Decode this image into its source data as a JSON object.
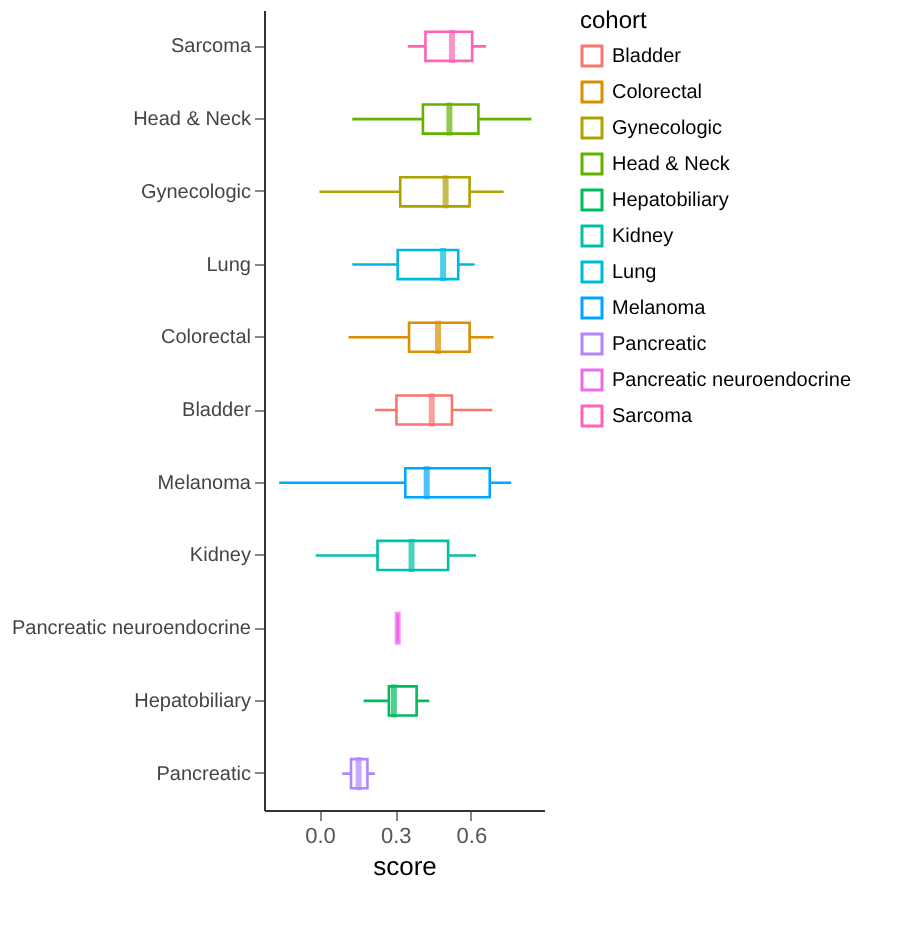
{
  "chart_data": {
    "type": "box",
    "orientation": "horizontal",
    "xlabel": "score",
    "legend_title": "cohort",
    "legend": "right",
    "grid": false,
    "categories": [
      "Sarcoma",
      "Head & Neck",
      "Gynecologic",
      "Lung",
      "Colorectal",
      "Bladder",
      "Melanoma",
      "Kidney",
      "Pancreatic neuroendocrine",
      "Hepatobiliary",
      "Pancreatic"
    ],
    "xlim": [
      -0.22,
      0.89
    ],
    "xticks": [
      {
        "value": 0,
        "label": "0.0"
      },
      {
        "value": 0.3,
        "label": "0.3"
      },
      {
        "value": 0.6,
        "label": "0.6"
      }
    ],
    "series": [
      {
        "name": "Bladder",
        "color": "#f8766d",
        "boxes": [
          null,
          null,
          null,
          null,
          null,
          {
            "low": 0.22,
            "q1": 0.305,
            "median": 0.445,
            "q3": 0.525,
            "high": 0.685
          },
          null,
          null,
          null,
          null,
          null
        ]
      },
      {
        "name": "Colorectal",
        "color": "#db8e00",
        "boxes": [
          null,
          null,
          null,
          null,
          {
            "low": 0.115,
            "q1": 0.355,
            "median": 0.47,
            "q3": 0.595,
            "high": 0.69
          },
          null,
          null,
          null,
          null,
          null,
          null
        ]
      },
      {
        "name": "Gynecologic",
        "color": "#aea200",
        "boxes": [
          null,
          null,
          {
            "low": 0.0,
            "q1": 0.32,
            "median": 0.5,
            "q3": 0.595,
            "high": 0.73
          },
          null,
          null,
          null,
          null,
          null,
          null,
          null,
          null
        ]
      },
      {
        "name": "Head & Neck",
        "color": "#64b200",
        "boxes": [
          null,
          {
            "low": 0.13,
            "q1": 0.41,
            "median": 0.515,
            "q3": 0.63,
            "high": 0.84
          },
          null,
          null,
          null,
          null,
          null,
          null,
          null,
          null,
          null
        ]
      },
      {
        "name": "Hepatobiliary",
        "color": "#00bd5c",
        "boxes": [
          null,
          null,
          null,
          null,
          null,
          null,
          null,
          null,
          null,
          {
            "low": 0.175,
            "q1": 0.275,
            "median": 0.295,
            "q3": 0.385,
            "high": 0.435
          },
          null
        ]
      },
      {
        "name": "Kidney",
        "color": "#00c1a7",
        "boxes": [
          null,
          null,
          null,
          null,
          null,
          null,
          null,
          {
            "low": -0.015,
            "q1": 0.23,
            "median": 0.365,
            "q3": 0.51,
            "high": 0.62
          },
          null,
          null,
          null
        ]
      },
      {
        "name": "Lung",
        "color": "#00bade",
        "boxes": [
          null,
          null,
          null,
          {
            "low": 0.13,
            "q1": 0.31,
            "median": 0.49,
            "q3": 0.55,
            "high": 0.615
          },
          null,
          null,
          null,
          null,
          null,
          null,
          null
        ]
      },
      {
        "name": "Melanoma",
        "color": "#00a6ff",
        "boxes": [
          null,
          null,
          null,
          null,
          null,
          null,
          {
            "low": -0.16,
            "q1": 0.34,
            "median": 0.425,
            "q3": 0.675,
            "high": 0.76
          },
          null,
          null,
          null,
          null
        ]
      },
      {
        "name": "Pancreatic",
        "color": "#b385ff",
        "boxes": [
          null,
          null,
          null,
          null,
          null,
          null,
          null,
          null,
          null,
          null,
          {
            "low": 0.09,
            "q1": 0.125,
            "median": 0.155,
            "q3": 0.19,
            "high": 0.22
          }
        ]
      },
      {
        "name": "Pancreatic neuroendocrine",
        "color": "#ef67eb",
        "boxes": [
          null,
          null,
          null,
          null,
          null,
          null,
          null,
          null,
          {
            "low": 0.31,
            "q1": 0.31,
            "median": 0.31,
            "q3": 0.31,
            "high": 0.31
          },
          null,
          null
        ]
      },
      {
        "name": "Sarcoma",
        "color": "#ff63b6",
        "boxes": [
          {
            "low": 0.35,
            "q1": 0.42,
            "median": 0.525,
            "q3": 0.605,
            "high": 0.66
          },
          null,
          null,
          null,
          null,
          null,
          null,
          null,
          null,
          null,
          null
        ]
      }
    ]
  }
}
